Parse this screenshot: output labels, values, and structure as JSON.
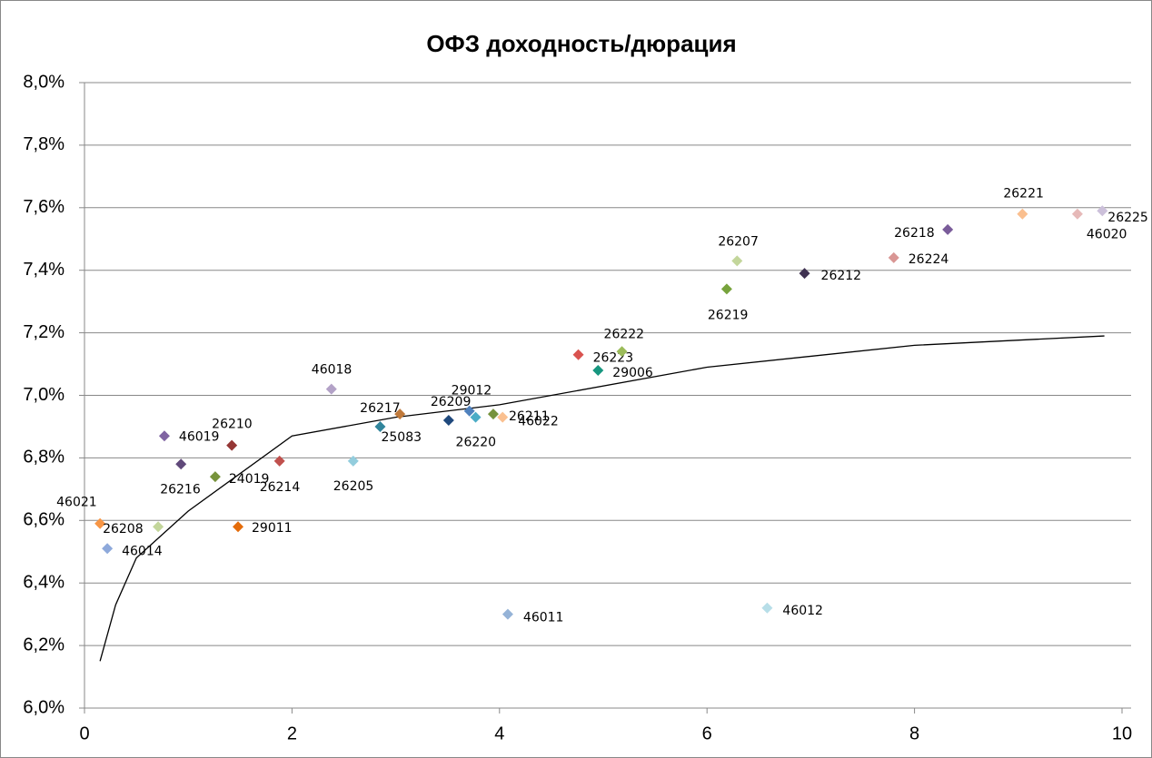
{
  "chart_data": {
    "type": "scatter",
    "title": "ОФЗ доходность/дюрация",
    "xlim": [
      0,
      10
    ],
    "xticks": [
      0,
      2,
      4,
      6,
      8,
      10
    ],
    "ylim": [
      6.0,
      8.0
    ],
    "yticks": [
      {
        "value": 6.0,
        "label": "6,0%"
      },
      {
        "value": 6.2,
        "label": "6,2%"
      },
      {
        "value": 6.4,
        "label": "6,4%"
      },
      {
        "value": 6.6,
        "label": "6,6%"
      },
      {
        "value": 6.8,
        "label": "6,8%"
      },
      {
        "value": 7.0,
        "label": "7,0%"
      },
      {
        "value": 7.2,
        "label": "7,2%"
      },
      {
        "value": 7.4,
        "label": "7,4%"
      },
      {
        "value": 7.6,
        "label": "7,6%"
      },
      {
        "value": 7.8,
        "label": "7,8%"
      },
      {
        "value": 8.0,
        "label": "8,0%"
      }
    ],
    "grid": true,
    "points": [
      {
        "label": "46021",
        "x": 0.15,
        "y": 6.59,
        "color": "#f79646"
      },
      {
        "label": "26208",
        "x": 0.71,
        "y": 6.58,
        "color": "#c3d69b"
      },
      {
        "label": "46014",
        "x": 0.22,
        "y": 6.51,
        "color": "#8ea9db"
      },
      {
        "label": "46019",
        "x": 0.77,
        "y": 6.87,
        "color": "#8064a2"
      },
      {
        "label": "26216",
        "x": 0.93,
        "y": 6.78,
        "color": "#60497a"
      },
      {
        "label": "26210",
        "x": 1.42,
        "y": 6.84,
        "color": "#953735"
      },
      {
        "label": "24019",
        "x": 1.26,
        "y": 6.74,
        "color": "#77933c"
      },
      {
        "label": "29011",
        "x": 1.48,
        "y": 6.58,
        "color": "#e46c0a"
      },
      {
        "label": "26214",
        "x": 1.88,
        "y": 6.79,
        "color": "#c0504d"
      },
      {
        "label": "46018",
        "x": 2.38,
        "y": 7.02,
        "color": "#b3a2c7"
      },
      {
        "label": "26205",
        "x": 2.59,
        "y": 6.79,
        "color": "#93cddd"
      },
      {
        "label": "26217",
        "x": 3.04,
        "y": 6.94,
        "color": "#c0793a"
      },
      {
        "label": "25083",
        "x": 2.85,
        "y": 6.9,
        "color": "#31859c"
      },
      {
        "label": "26209",
        "x": 3.51,
        "y": 6.92,
        "color": "#1f497d"
      },
      {
        "label": "29012",
        "x": 3.71,
        "y": 6.95,
        "color": "#4f81bd"
      },
      {
        "label": "26220",
        "x": 3.77,
        "y": 6.93,
        "color": "#4bacc6"
      },
      {
        "label": "26211",
        "x": 3.94,
        "y": 6.94,
        "color": "#76923c"
      },
      {
        "label": "46022",
        "x": 4.03,
        "y": 6.93,
        "color": "#fac090"
      },
      {
        "label": "46011",
        "x": 4.08,
        "y": 6.3,
        "color": "#95b3d7"
      },
      {
        "label": "26223",
        "x": 4.76,
        "y": 7.13,
        "color": "#d9534f"
      },
      {
        "label": "26222",
        "x": 5.18,
        "y": 7.14,
        "color": "#9bbb59"
      },
      {
        "label": "29006",
        "x": 4.95,
        "y": 7.08,
        "color": "#17967f"
      },
      {
        "label": "26219",
        "x": 6.19,
        "y": 7.34,
        "color": "#77a33c"
      },
      {
        "label": "26207",
        "x": 6.29,
        "y": 7.43,
        "color": "#c3d69b"
      },
      {
        "label": "46012",
        "x": 6.58,
        "y": 6.32,
        "color": "#b7dee8"
      },
      {
        "label": "26212",
        "x": 6.94,
        "y": 7.39,
        "color": "#3f3151"
      },
      {
        "label": "26224",
        "x": 7.8,
        "y": 7.44,
        "color": "#d99694"
      },
      {
        "label": "26218",
        "x": 8.32,
        "y": 7.53,
        "color": "#7a5c9a"
      },
      {
        "label": "26221",
        "x": 9.04,
        "y": 7.58,
        "color": "#fabf8f"
      },
      {
        "label": "46020",
        "x": 9.57,
        "y": 7.58,
        "color": "#e6b9b8"
      },
      {
        "label": "26225",
        "x": 9.81,
        "y": 7.59,
        "color": "#ccc0da"
      }
    ],
    "trendline": {
      "x": [
        0.15,
        0.3,
        0.5,
        1,
        2,
        3,
        4,
        6,
        8,
        9.83
      ],
      "y": [
        6.15,
        6.33,
        6.48,
        6.63,
        6.87,
        6.93,
        6.97,
        7.09,
        7.16,
        7.19
      ]
    }
  }
}
